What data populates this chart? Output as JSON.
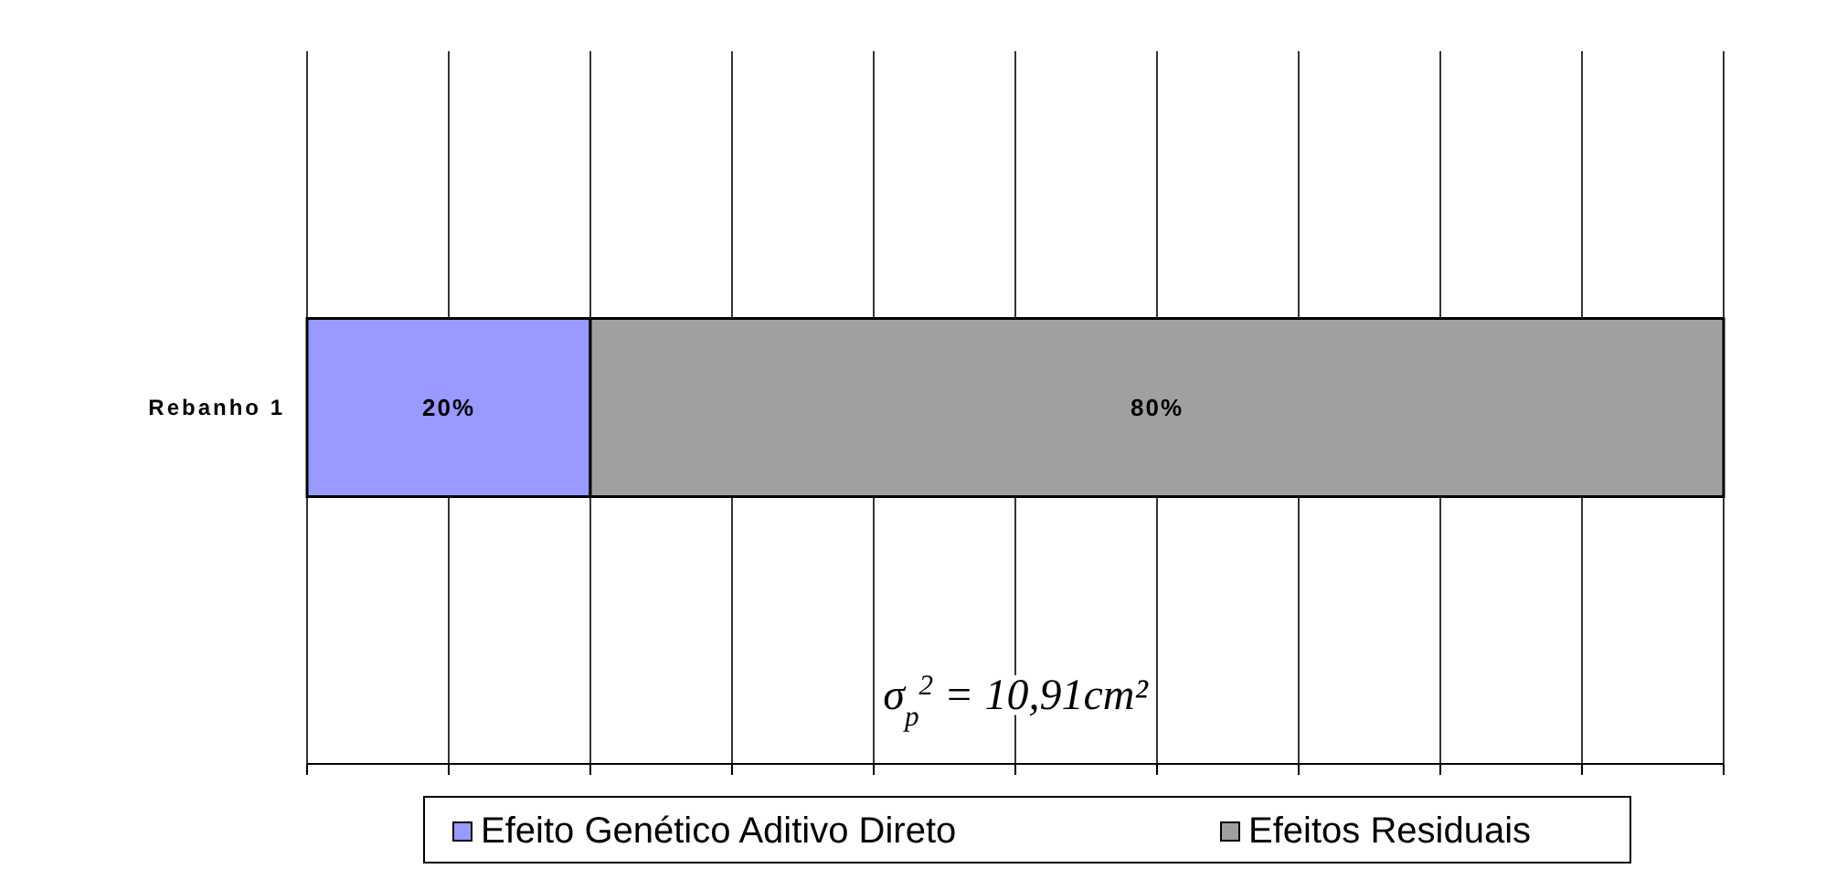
{
  "chart_data": {
    "type": "bar",
    "orientation": "horizontal",
    "stacked": true,
    "categories": [
      "Rebanho 1"
    ],
    "series": [
      {
        "name": "Efeito Genético Aditivo Direto",
        "color": "#9999ff",
        "values": [
          20
        ],
        "value_labels": [
          "20%"
        ]
      },
      {
        "name": "Efeitos Residuais",
        "color": "#a0a0a0",
        "values": [
          80
        ],
        "value_labels": [
          "80%"
        ]
      }
    ],
    "xlim": [
      0,
      100
    ],
    "xticks": [
      {
        "value": 0,
        "label": null
      },
      {
        "value": 10,
        "label": null
      },
      {
        "value": 20,
        "label": null
      },
      {
        "value": 30,
        "label": null
      },
      {
        "value": 40,
        "label": null
      },
      {
        "value": 50,
        "label": null
      },
      {
        "value": 60,
        "label": null
      },
      {
        "value": 70,
        "label": null
      },
      {
        "value": 80,
        "label": null
      },
      {
        "value": 90,
        "label": null
      },
      {
        "value": 100,
        "label": null
      }
    ],
    "grid": "x",
    "tick_labels": "y",
    "legend": "bottom",
    "annotations": [
      "σ$_{p}$$^{2}$ = 10,91cm²"
    ]
  }
}
